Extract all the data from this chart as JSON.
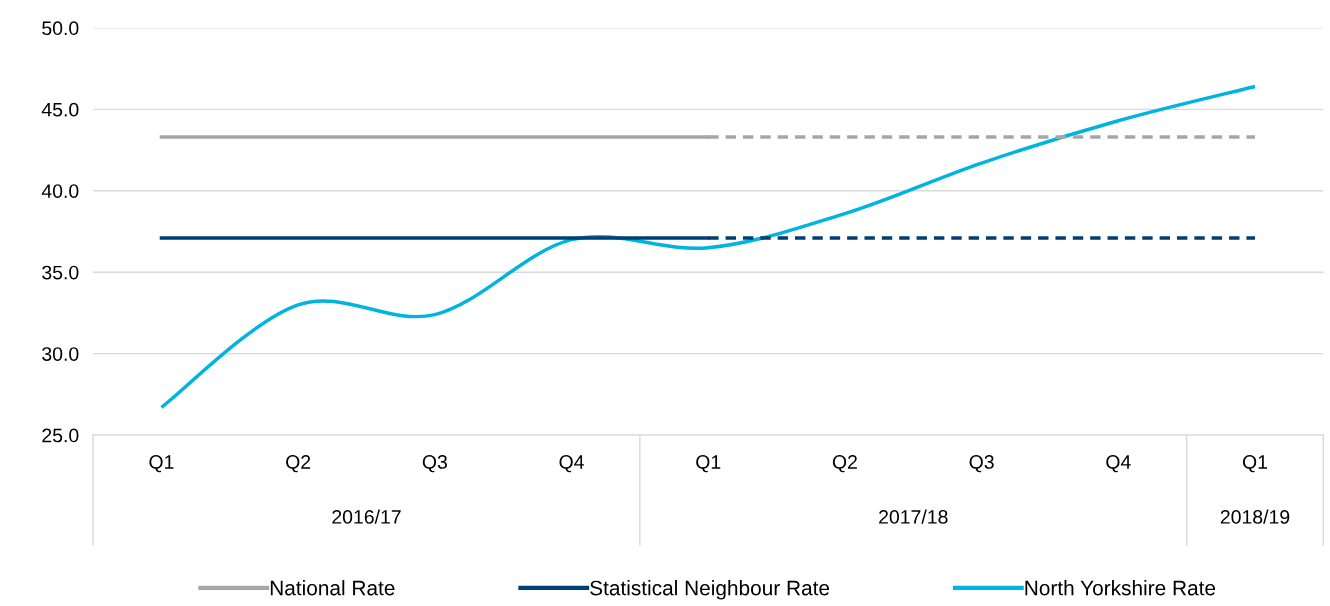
{
  "chart_data": {
    "type": "line",
    "categories": [
      "Q1",
      "Q2",
      "Q3",
      "Q4",
      "Q1",
      "Q2",
      "Q3",
      "Q4",
      "Q1"
    ],
    "series": [
      {
        "name": "National Rate",
        "color": "#a6a6a6",
        "values": [
          43.3,
          43.3,
          43.3,
          43.3,
          43.3,
          null,
          null,
          null,
          null
        ]
      },
      {
        "color": "#a6a6a6",
        "line_style": "dashed",
        "values": [
          null,
          null,
          null,
          null,
          43.3,
          43.3,
          43.3,
          43.3,
          43.3
        ]
      },
      {
        "name": "Statistical Neighbour Rate",
        "color": "#003f72",
        "values": [
          37.1,
          37.1,
          37.1,
          37.1,
          37.1,
          null,
          null,
          null,
          null
        ]
      },
      {
        "color": "#003f72",
        "line_style": "dashed",
        "values": [
          null,
          null,
          null,
          null,
          37.1,
          37.1,
          37.1,
          37.1,
          37.1
        ]
      },
      {
        "name": "North Yorkshire Rate",
        "color": "#00b4e0",
        "values": [
          26.7,
          33.0,
          32.4,
          37.0,
          36.5,
          38.6,
          41.7,
          44.3,
          46.4
        ]
      }
    ],
    "annotations": [
      "2016/17",
      "2017/18",
      "2018/19"
    ],
    "ylim": [
      25,
      50
    ],
    "yticks": [
      {
        "value": 25,
        "label": "25.0"
      },
      {
        "value": 30,
        "label": "30.0"
      },
      {
        "value": 35,
        "label": "35.0"
      },
      {
        "value": 40,
        "label": "40.0"
      },
      {
        "value": 45,
        "label": "45.0"
      },
      {
        "value": 50,
        "label": "50.0"
      }
    ],
    "grid": "y",
    "legend": "bottom",
    "marker": "none",
    "line_style": "solid"
  }
}
